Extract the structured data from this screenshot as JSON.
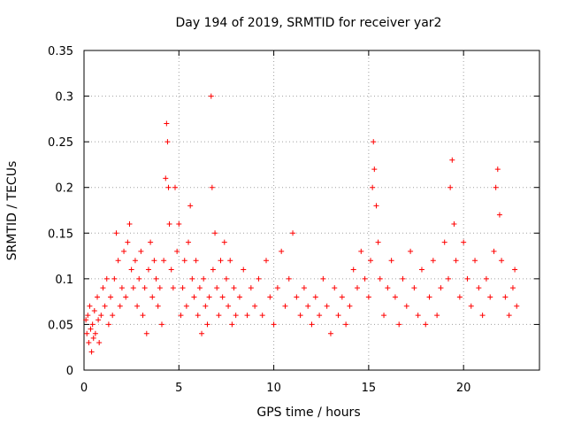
{
  "chart_data": {
    "type": "scatter",
    "title": "Day 194 of 2019, SRMTID for receiver yar2",
    "xlabel": "GPS time / hours",
    "ylabel": "SRMTID / TECUs",
    "xlim": [
      0,
      24
    ],
    "ylim": [
      0,
      0.35
    ],
    "x_ticks": [
      0,
      5,
      10,
      15,
      20
    ],
    "x_tick_labels": [
      "0",
      "5",
      "10",
      "15",
      "20"
    ],
    "y_ticks": [
      0,
      0.05,
      0.1,
      0.15,
      0.2,
      0.25,
      0.3,
      0.35
    ],
    "y_tick_labels": [
      "0",
      "0.05",
      "0.1",
      "0.15",
      "0.2",
      "0.25",
      "0.3",
      "0.35"
    ],
    "grid": true,
    "marker": "+",
    "marker_color": "#ff0000",
    "series": [
      {
        "name": "SRMTID",
        "points": [
          [
            0.1,
            0.055
          ],
          [
            0.15,
            0.04
          ],
          [
            0.2,
            0.06
          ],
          [
            0.25,
            0.03
          ],
          [
            0.3,
            0.07
          ],
          [
            0.35,
            0.045
          ],
          [
            0.4,
            0.02
          ],
          [
            0.45,
            0.05
          ],
          [
            0.5,
            0.035
          ],
          [
            0.55,
            0.065
          ],
          [
            0.6,
            0.04
          ],
          [
            0.7,
            0.08
          ],
          [
            0.75,
            0.055
          ],
          [
            0.8,
            0.03
          ],
          [
            0.9,
            0.06
          ],
          [
            1.0,
            0.09
          ],
          [
            1.1,
            0.07
          ],
          [
            1.2,
            0.1
          ],
          [
            1.3,
            0.05
          ],
          [
            1.4,
            0.08
          ],
          [
            1.5,
            0.06
          ],
          [
            1.6,
            0.1
          ],
          [
            1.7,
            0.15
          ],
          [
            1.8,
            0.12
          ],
          [
            1.9,
            0.07
          ],
          [
            2.0,
            0.09
          ],
          [
            2.1,
            0.13
          ],
          [
            2.2,
            0.08
          ],
          [
            2.3,
            0.14
          ],
          [
            2.4,
            0.16
          ],
          [
            2.5,
            0.11
          ],
          [
            2.6,
            0.09
          ],
          [
            2.7,
            0.12
          ],
          [
            2.8,
            0.07
          ],
          [
            2.9,
            0.1
          ],
          [
            3.0,
            0.13
          ],
          [
            3.1,
            0.06
          ],
          [
            3.2,
            0.09
          ],
          [
            3.3,
            0.04
          ],
          [
            3.4,
            0.11
          ],
          [
            3.5,
            0.14
          ],
          [
            3.6,
            0.08
          ],
          [
            3.7,
            0.12
          ],
          [
            3.8,
            0.1
          ],
          [
            3.9,
            0.07
          ],
          [
            4.0,
            0.09
          ],
          [
            4.1,
            0.05
          ],
          [
            4.2,
            0.12
          ],
          [
            4.3,
            0.21
          ],
          [
            4.35,
            0.27
          ],
          [
            4.4,
            0.25
          ],
          [
            4.45,
            0.2
          ],
          [
            4.5,
            0.16
          ],
          [
            4.6,
            0.11
          ],
          [
            4.7,
            0.09
          ],
          [
            4.8,
            0.2
          ],
          [
            4.9,
            0.13
          ],
          [
            5.0,
            0.16
          ],
          [
            5.1,
            0.06
          ],
          [
            5.2,
            0.09
          ],
          [
            5.3,
            0.12
          ],
          [
            5.4,
            0.07
          ],
          [
            5.5,
            0.14
          ],
          [
            5.6,
            0.18
          ],
          [
            5.7,
            0.1
          ],
          [
            5.8,
            0.08
          ],
          [
            5.9,
            0.12
          ],
          [
            6.0,
            0.06
          ],
          [
            6.1,
            0.09
          ],
          [
            6.2,
            0.04
          ],
          [
            6.3,
            0.1
          ],
          [
            6.4,
            0.07
          ],
          [
            6.5,
            0.05
          ],
          [
            6.6,
            0.08
          ],
          [
            6.7,
            0.3
          ],
          [
            6.75,
            0.2
          ],
          [
            6.8,
            0.11
          ],
          [
            6.9,
            0.15
          ],
          [
            7.0,
            0.09
          ],
          [
            7.1,
            0.06
          ],
          [
            7.2,
            0.12
          ],
          [
            7.3,
            0.08
          ],
          [
            7.4,
            0.14
          ],
          [
            7.5,
            0.1
          ],
          [
            7.6,
            0.07
          ],
          [
            7.7,
            0.12
          ],
          [
            7.8,
            0.05
          ],
          [
            7.9,
            0.09
          ],
          [
            8.0,
            0.06
          ],
          [
            8.2,
            0.08
          ],
          [
            8.4,
            0.11
          ],
          [
            8.6,
            0.06
          ],
          [
            8.8,
            0.09
          ],
          [
            9.0,
            0.07
          ],
          [
            9.2,
            0.1
          ],
          [
            9.4,
            0.06
          ],
          [
            9.6,
            0.12
          ],
          [
            9.8,
            0.08
          ],
          [
            10.0,
            0.05
          ],
          [
            10.2,
            0.09
          ],
          [
            10.4,
            0.13
          ],
          [
            10.6,
            0.07
          ],
          [
            10.8,
            0.1
          ],
          [
            11.0,
            0.15
          ],
          [
            11.2,
            0.08
          ],
          [
            11.4,
            0.06
          ],
          [
            11.6,
            0.09
          ],
          [
            11.8,
            0.07
          ],
          [
            12.0,
            0.05
          ],
          [
            12.2,
            0.08
          ],
          [
            12.4,
            0.06
          ],
          [
            12.6,
            0.1
          ],
          [
            12.8,
            0.07
          ],
          [
            13.0,
            0.04
          ],
          [
            13.2,
            0.09
          ],
          [
            13.4,
            0.06
          ],
          [
            13.6,
            0.08
          ],
          [
            13.8,
            0.05
          ],
          [
            14.0,
            0.07
          ],
          [
            14.2,
            0.11
          ],
          [
            14.4,
            0.09
          ],
          [
            14.6,
            0.13
          ],
          [
            14.8,
            0.1
          ],
          [
            15.0,
            0.08
          ],
          [
            15.1,
            0.12
          ],
          [
            15.2,
            0.2
          ],
          [
            15.25,
            0.25
          ],
          [
            15.3,
            0.22
          ],
          [
            15.4,
            0.18
          ],
          [
            15.5,
            0.14
          ],
          [
            15.6,
            0.1
          ],
          [
            15.8,
            0.06
          ],
          [
            16.0,
            0.09
          ],
          [
            16.2,
            0.12
          ],
          [
            16.4,
            0.08
          ],
          [
            16.6,
            0.05
          ],
          [
            16.8,
            0.1
          ],
          [
            17.0,
            0.07
          ],
          [
            17.2,
            0.13
          ],
          [
            17.4,
            0.09
          ],
          [
            17.6,
            0.06
          ],
          [
            17.8,
            0.11
          ],
          [
            18.0,
            0.05
          ],
          [
            18.2,
            0.08
          ],
          [
            18.4,
            0.12
          ],
          [
            18.6,
            0.06
          ],
          [
            18.8,
            0.09
          ],
          [
            19.0,
            0.14
          ],
          [
            19.2,
            0.1
          ],
          [
            19.3,
            0.2
          ],
          [
            19.4,
            0.23
          ],
          [
            19.5,
            0.16
          ],
          [
            19.6,
            0.12
          ],
          [
            19.8,
            0.08
          ],
          [
            20.0,
            0.14
          ],
          [
            20.2,
            0.1
          ],
          [
            20.4,
            0.07
          ],
          [
            20.6,
            0.12
          ],
          [
            20.8,
            0.09
          ],
          [
            21.0,
            0.06
          ],
          [
            21.2,
            0.1
          ],
          [
            21.4,
            0.08
          ],
          [
            21.6,
            0.13
          ],
          [
            21.7,
            0.2
          ],
          [
            21.8,
            0.22
          ],
          [
            21.9,
            0.17
          ],
          [
            22.0,
            0.12
          ],
          [
            22.2,
            0.08
          ],
          [
            22.4,
            0.06
          ],
          [
            22.6,
            0.09
          ],
          [
            22.7,
            0.11
          ],
          [
            22.8,
            0.07
          ]
        ]
      }
    ]
  }
}
